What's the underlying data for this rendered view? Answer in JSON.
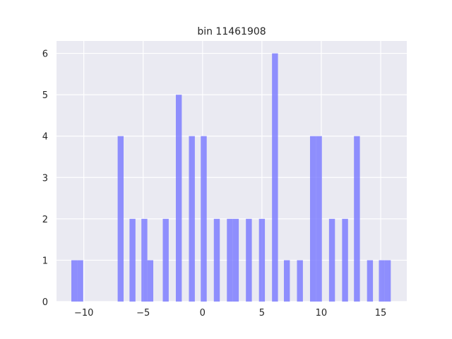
{
  "chart_data": {
    "type": "bar",
    "title": "bin 11461908",
    "xlabel": "",
    "ylabel": "",
    "xlim": [
      -12.3,
      17.2
    ],
    "ylim": [
      0,
      6.3
    ],
    "xticks": [
      -10,
      -5,
      0,
      5,
      10,
      15
    ],
    "xtick_labels": [
      "−10",
      "−5",
      "0",
      "5",
      "10",
      "15"
    ],
    "yticks": [
      0,
      1,
      2,
      3,
      4,
      5,
      6
    ],
    "ytick_labels": [
      "0",
      "1",
      "2",
      "3",
      "4",
      "5",
      "6"
    ],
    "bar_width": 0.5,
    "grid": true,
    "bar_color": "#7777ff",
    "background_color": "#eaeaf2",
    "bins": [
      {
        "x": -10.8,
        "count": 1
      },
      {
        "x": -10.3,
        "count": 1
      },
      {
        "x": -6.9,
        "count": 4
      },
      {
        "x": -5.9,
        "count": 2
      },
      {
        "x": -4.9,
        "count": 2
      },
      {
        "x": -4.4,
        "count": 1
      },
      {
        "x": -3.1,
        "count": 2
      },
      {
        "x": -2.0,
        "count": 5
      },
      {
        "x": -0.9,
        "count": 4
      },
      {
        "x": 0.1,
        "count": 4
      },
      {
        "x": 1.2,
        "count": 2
      },
      {
        "x": 2.3,
        "count": 2
      },
      {
        "x": 2.8,
        "count": 2
      },
      {
        "x": 3.9,
        "count": 2
      },
      {
        "x": 5.0,
        "count": 2
      },
      {
        "x": 6.1,
        "count": 6
      },
      {
        "x": 7.1,
        "count": 1
      },
      {
        "x": 8.2,
        "count": 1
      },
      {
        "x": 9.3,
        "count": 4
      },
      {
        "x": 9.8,
        "count": 4
      },
      {
        "x": 10.9,
        "count": 2
      },
      {
        "x": 12.0,
        "count": 2
      },
      {
        "x": 13.0,
        "count": 4
      },
      {
        "x": 14.1,
        "count": 1
      },
      {
        "x": 15.1,
        "count": 1
      },
      {
        "x": 15.6,
        "count": 1
      }
    ]
  }
}
